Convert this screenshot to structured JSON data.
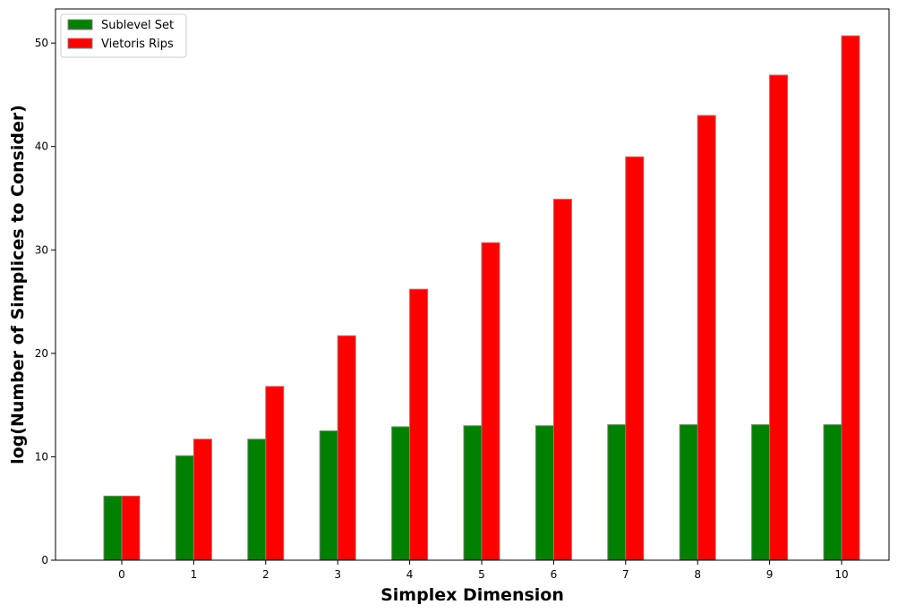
{
  "chart_data": {
    "type": "bar",
    "title": "",
    "xlabel": "Simplex Dimension",
    "ylabel": "log(Number of Simplices to Consider)",
    "categories": [
      "0",
      "1",
      "2",
      "3",
      "4",
      "5",
      "6",
      "7",
      "8",
      "9",
      "10"
    ],
    "series": [
      {
        "name": "Sublevel Set",
        "color": "#008000",
        "values": [
          6.2,
          10.1,
          11.7,
          12.5,
          12.9,
          13.0,
          13.0,
          13.1,
          13.1,
          13.1,
          13.1
        ]
      },
      {
        "name": "Vietoris Rips",
        "color": "#ff0000",
        "values": [
          6.2,
          11.7,
          16.8,
          21.7,
          26.2,
          30.7,
          34.9,
          39.0,
          43.0,
          46.9,
          50.7
        ]
      }
    ],
    "ylim": [
      0,
      53.3
    ],
    "yticks": [
      0,
      10,
      20,
      30,
      40,
      50
    ],
    "grid": false,
    "legend_position": "top-left",
    "bar_edge_color": "#808080"
  }
}
